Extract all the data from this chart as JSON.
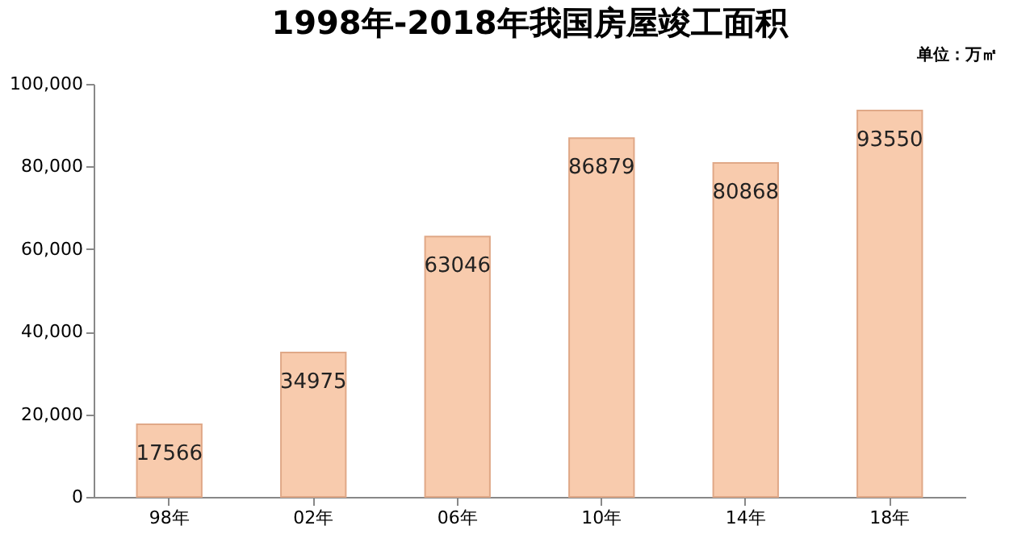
{
  "chart_data": {
    "type": "bar",
    "title": "1998年-2018年我国房屋竣工面积",
    "annotations": [
      "单位：万㎡"
    ],
    "categories": [
      "98年",
      "02年",
      "06年",
      "10年",
      "14年",
      "18年"
    ],
    "values": [
      17566,
      34975,
      63046,
      86879,
      80868,
      93550
    ],
    "color": "#f8cbad",
    "data_labels": true,
    "grid": false,
    "ylim": [
      0,
      100000
    ],
    "yticks": [
      0,
      {
        "value": 20000,
        "label": "20,000"
      },
      {
        "value": 40000,
        "label": "40,000"
      },
      {
        "value": 60000,
        "label": "60,000"
      },
      {
        "value": 80000,
        "label": "80,000"
      },
      {
        "value": 100000,
        "label": "100,000"
      }
    ]
  }
}
